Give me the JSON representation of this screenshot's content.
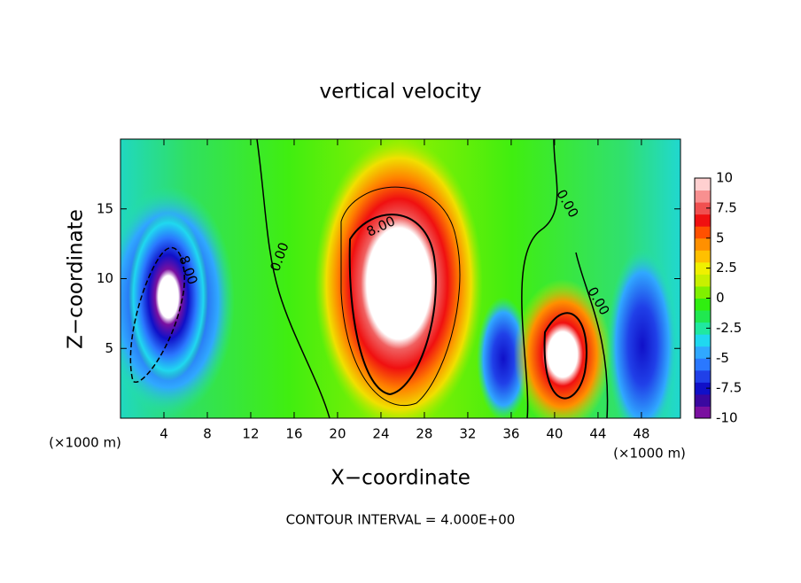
{
  "chart_data": {
    "type": "contour",
    "title": "vertical velocity",
    "xlabel": "X−coordinate",
    "ylabel": "Z−coordinate",
    "x_unit_left": "(×1000 m)",
    "x_unit_right": "(×1000 m)",
    "footnote": "CONTOUR INTERVAL = 4.000E+00",
    "xlim": [
      0,
      51.6
    ],
    "xticks": [
      4,
      8,
      12,
      16,
      20,
      24,
      28,
      32,
      36,
      40,
      44,
      48
    ],
    "ylim": [
      0,
      20
    ],
    "yticks": [
      5,
      10,
      15
    ],
    "colorbar": {
      "lim": [
        -10,
        10
      ],
      "ticks": [
        10,
        7.5,
        5,
        2.5,
        0,
        -2.5,
        -5,
        -7.5,
        -10
      ],
      "colors": [
        "#7a10a0",
        "#3a08a0",
        "#1010c8",
        "#2040e8",
        "#2a78ff",
        "#30a8ff",
        "#20d8f0",
        "#20e8a0",
        "#20e850",
        "#30ee10",
        "#80f000",
        "#c8f000",
        "#f0f000",
        "#ffc000",
        "#ff9000",
        "#ff5000",
        "#f01010",
        "#f05050",
        "#f89090",
        "#ffd0d0"
      ]
    },
    "contour_labels": [
      {
        "value": 8,
        "label": "8.00"
      },
      {
        "value": 8,
        "label": "8.00"
      },
      {
        "value": 0,
        "label": "0.00"
      },
      {
        "value": 0,
        "label": "0.00"
      },
      {
        "value": 0,
        "label": "0.00"
      }
    ]
  }
}
